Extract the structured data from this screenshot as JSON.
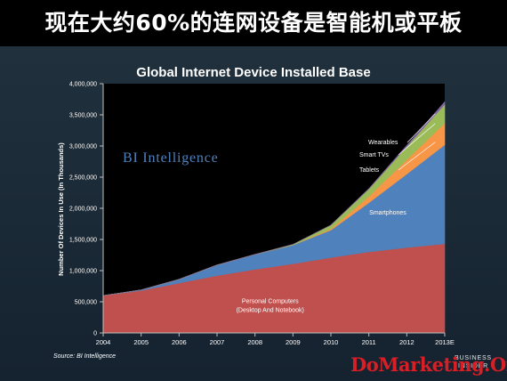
{
  "headline": "现在大约60%的连网设备是智能机或平板",
  "brand": {
    "chart_watermark": "BI Intelligence",
    "site_watermark": "DoMarketing.Org",
    "logo_line1": "BUSINESS",
    "logo_line2": "INSIDER"
  },
  "colors": {
    "pc": "#c0504d",
    "smartphones": "#4f81bd",
    "tablets": "#f79646",
    "smart_tvs": "#9bbb59",
    "wearables": "#8064a2",
    "plot_bg": "#000000"
  },
  "chart_data": {
    "type": "area",
    "stacked": true,
    "title": "Global Internet Device Installed Base",
    "xlabel": "",
    "ylabel": "Number Of Devices In Use (In Thousands)",
    "source": "Source: BI Intelligence",
    "x": [
      "2004",
      "2005",
      "2006",
      "2007",
      "2008",
      "2009",
      "2010",
      "2011",
      "2012",
      "2013E"
    ],
    "ylim": [
      0,
      4000000
    ],
    "yticks": [
      "0",
      "500,000",
      "1,000,000",
      "1,500,000",
      "2,000,000",
      "2,500,000",
      "3,000,000",
      "3,500,000",
      "4,000,000"
    ],
    "series": [
      {
        "name": "Personal Computers (Desktop And Notebook)",
        "label_lines": [
          "Personal Computers",
          "(Desktop And Notebook)"
        ],
        "color_key": "pc",
        "values": [
          600000,
          680000,
          800000,
          920000,
          1020000,
          1110000,
          1210000,
          1300000,
          1370000,
          1430000
        ]
      },
      {
        "name": "Smartphones",
        "label_lines": [
          "Smartphones"
        ],
        "color_key": "smartphones",
        "values": [
          0,
          10000,
          60000,
          170000,
          240000,
          300000,
          440000,
          790000,
          1180000,
          1590000
        ]
      },
      {
        "name": "Tablets",
        "label_lines": [
          "Tablets"
        ],
        "color_key": "tablets",
        "values": [
          0,
          0,
          0,
          0,
          0,
          0,
          20000,
          100000,
          230000,
          350000
        ]
      },
      {
        "name": "Smart TVs",
        "label_lines": [
          "Smart TVs"
        ],
        "color_key": "smart_tvs",
        "values": [
          0,
          0,
          0,
          0,
          0,
          10000,
          60000,
          120000,
          210000,
          300000
        ]
      },
      {
        "name": "Wearables",
        "label_lines": [
          "Wearables"
        ],
        "color_key": "wearables",
        "values": [
          0,
          0,
          0,
          0,
          0,
          0,
          0,
          5000,
          20000,
          40000
        ]
      }
    ]
  }
}
